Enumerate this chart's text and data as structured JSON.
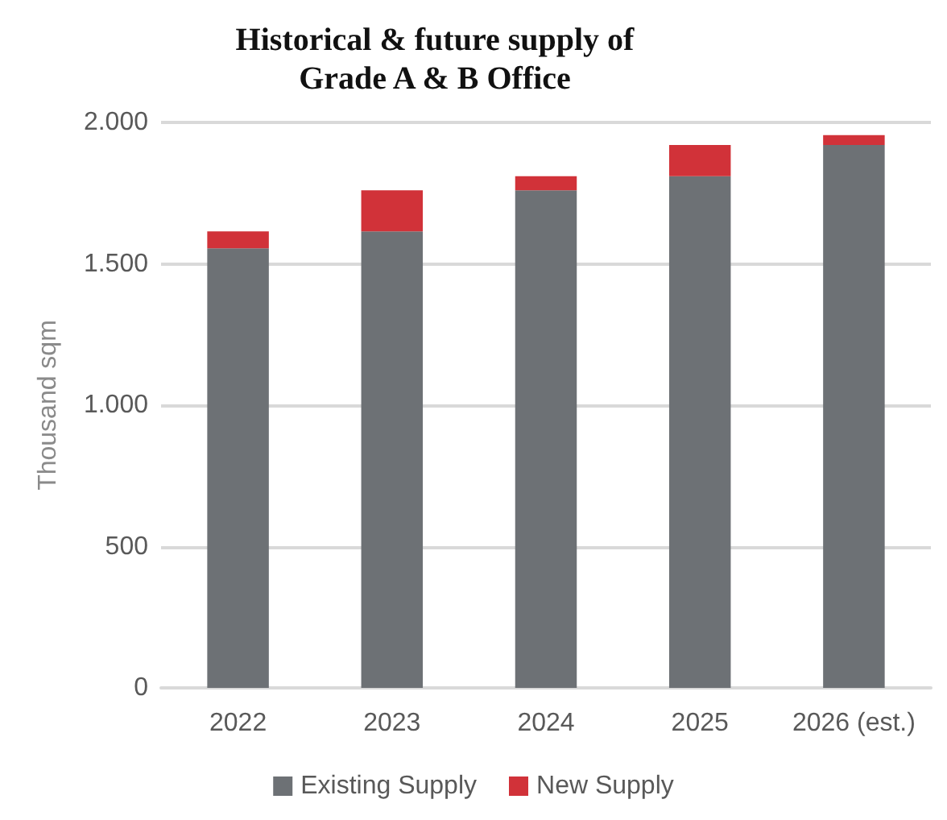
{
  "chart_data": {
    "type": "bar",
    "title": "Historical & future supply of\nGrade A & B Office",
    "ylabel": "Thousand sqm",
    "categories": [
      "2022",
      "2023",
      "2024",
      "2025",
      "2026 (est.)"
    ],
    "stacked": true,
    "series": [
      {
        "name": "Existing Supply",
        "color": "#6d7175",
        "values": [
          1555,
          1615,
          1760,
          1810,
          1920
        ]
      },
      {
        "name": "New Supply",
        "color": "#d13239",
        "values": [
          60,
          145,
          50,
          110,
          35
        ]
      }
    ],
    "ylim": [
      0,
      2000
    ],
    "yticks": [
      0,
      500,
      {
        "value": 1000,
        "label": "1.000"
      },
      {
        "value": 1500,
        "label": "1.500"
      },
      {
        "value": 2000,
        "label": "2.000"
      }
    ],
    "grid": "y",
    "legend": "bottom"
  }
}
